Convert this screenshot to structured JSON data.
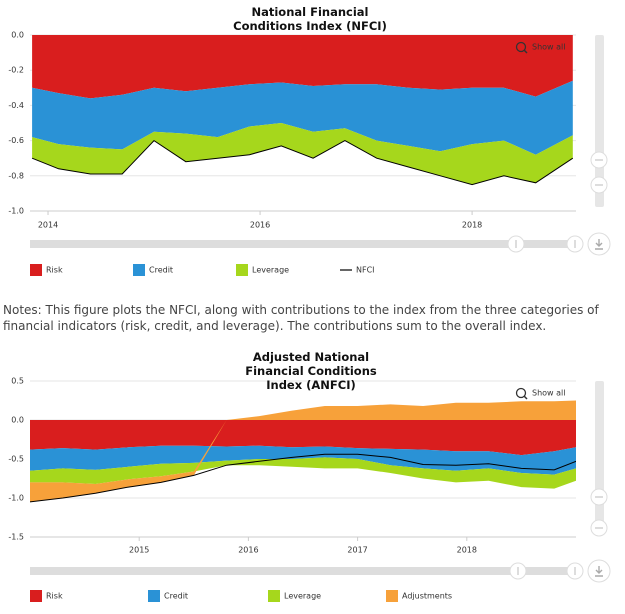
{
  "chart_data": [
    {
      "type": "area",
      "stacked": true,
      "title": "National Financial Conditions Index (NFCI)",
      "zoom_button": "Show all",
      "x": [
        2013.85,
        2014.1,
        2014.4,
        2014.7,
        2015.0,
        2015.3,
        2015.6,
        2015.9,
        2016.2,
        2016.5,
        2016.8,
        2017.1,
        2017.4,
        2017.7,
        2018.0,
        2018.3,
        2018.6,
        2018.95
      ],
      "xlim": [
        2013.83,
        2018.98
      ],
      "xticks": [
        2014,
        2016,
        2018
      ],
      "ylim": [
        -1,
        0
      ],
      "yticks": [
        {
          "value": 0,
          "label": "0.0"
        },
        -0.2,
        -0.4,
        -0.6,
        -0.8,
        {
          "value": -1,
          "label": "-1.0"
        }
      ],
      "grid": true,
      "series": [
        {
          "name": "Risk",
          "color": "#d91e1e",
          "values": [
            -0.3,
            -0.33,
            -0.36,
            -0.34,
            -0.3,
            -0.32,
            -0.3,
            -0.28,
            -0.27,
            -0.29,
            -0.28,
            -0.28,
            -0.3,
            -0.31,
            -0.3,
            -0.3,
            -0.35,
            -0.26
          ]
        },
        {
          "name": "Credit",
          "color": "#2a92d6",
          "values": [
            -0.28,
            -0.29,
            -0.28,
            -0.31,
            -0.25,
            -0.24,
            -0.28,
            -0.24,
            -0.23,
            -0.26,
            -0.25,
            -0.32,
            -0.33,
            -0.35,
            -0.32,
            -0.3,
            -0.33,
            -0.31
          ]
        },
        {
          "name": "Leverage",
          "color": "#a6d71c",
          "values": [
            -0.12,
            -0.14,
            -0.15,
            -0.14,
            -0.05,
            -0.16,
            -0.12,
            -0.16,
            -0.13,
            -0.15,
            -0.07,
            -0.1,
            -0.12,
            -0.14,
            -0.23,
            -0.2,
            -0.16,
            -0.13
          ]
        },
        {
          "name": "NFCI",
          "type": "line",
          "color": "#000000",
          "values": [
            -0.7,
            -0.76,
            -0.79,
            -0.79,
            -0.6,
            -0.72,
            -0.7,
            -0.68,
            -0.63,
            -0.7,
            -0.6,
            -0.7,
            -0.75,
            -0.8,
            -0.85,
            -0.8,
            -0.84,
            -0.7
          ]
        }
      ]
    },
    {
      "type": "area",
      "stacked": true,
      "title": "Adjusted National Financial Conditions Index (ANFCI)",
      "zoom_button": "Show all",
      "x": [
        2014.0,
        2014.3,
        2014.6,
        2014.9,
        2015.2,
        2015.5,
        2015.8,
        2016.1,
        2016.4,
        2016.7,
        2017.0,
        2017.3,
        2017.6,
        2017.9,
        2018.2,
        2018.5,
        2018.8,
        2019.0
      ],
      "xlim": [
        2014.0,
        2019.0
      ],
      "xticks": [
        2015,
        2016,
        2017,
        2018
      ],
      "ylim": [
        -1.5,
        0.5
      ],
      "yticks": [
        -1.5,
        {
          "value": -1,
          "label": "-1.0"
        },
        -0.5,
        {
          "value": 0,
          "label": "0.0"
        },
        0.5
      ],
      "grid": true,
      "series": [
        {
          "name": "Risk",
          "color": "#d91e1e",
          "values": [
            -0.38,
            -0.36,
            -0.38,
            -0.35,
            -0.33,
            -0.33,
            -0.34,
            -0.33,
            -0.35,
            -0.34,
            -0.36,
            -0.37,
            -0.38,
            -0.4,
            -0.4,
            -0.45,
            -0.4,
            -0.35
          ]
        },
        {
          "name": "Credit",
          "color": "#2a92d6",
          "values": [
            -0.27,
            -0.26,
            -0.26,
            -0.25,
            -0.23,
            -0.22,
            -0.18,
            -0.17,
            -0.15,
            -0.14,
            -0.14,
            -0.21,
            -0.24,
            -0.25,
            -0.22,
            -0.23,
            -0.3,
            -0.27
          ]
        },
        {
          "name": "Leverage",
          "color": "#a6d71c",
          "values": [
            -0.15,
            -0.18,
            -0.18,
            -0.16,
            -0.16,
            -0.11,
            -0.06,
            -0.08,
            -0.1,
            -0.14,
            -0.12,
            -0.1,
            -0.13,
            -0.15,
            -0.16,
            -0.18,
            -0.18,
            -0.16
          ]
        },
        {
          "name": "Adjustments",
          "color": "#f7a13a",
          "values": [
            -0.25,
            -0.2,
            -0.12,
            -0.1,
            -0.08,
            -0.05,
            0.0,
            0.05,
            0.12,
            0.18,
            0.18,
            0.2,
            0.18,
            0.22,
            0.22,
            0.24,
            0.24,
            0.25
          ]
        },
        {
          "type": "line",
          "color": "#000000",
          "values": [
            -1.05,
            -1.0,
            -0.94,
            -0.86,
            -0.8,
            -0.71,
            -0.58,
            -0.53,
            -0.48,
            -0.44,
            -0.44,
            -0.48,
            -0.57,
            -0.58,
            -0.56,
            -0.62,
            -0.64,
            -0.53
          ]
        }
      ]
    }
  ],
  "notes": "Notes: This figure plots the NFCI, along with contributions to the index from the three categories of financial indicators (risk, credit, and leverage). The contributions sum to the overall index."
}
